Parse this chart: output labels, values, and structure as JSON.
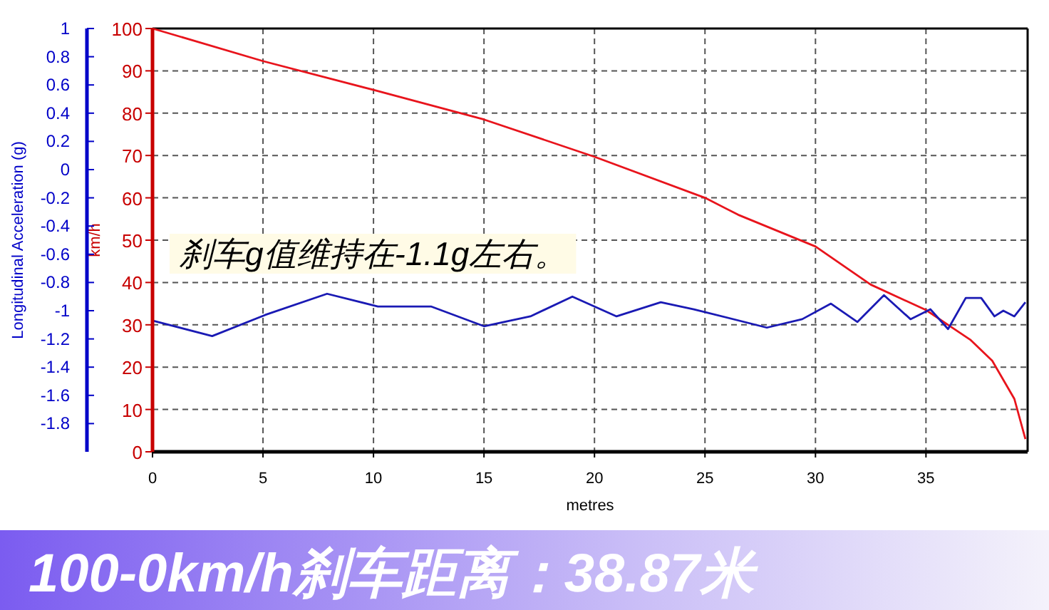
{
  "chart_data": {
    "type": "line",
    "title": "100-0km/h刹车距离：38.87米",
    "xlabel": "metres",
    "ylabel": "km/h",
    "y2label": "Longitudinal Acceleration (g)",
    "xlim": [
      0,
      39.6
    ],
    "xticks": [
      0,
      5,
      10,
      15,
      20,
      25,
      30,
      35
    ],
    "ylim": [
      0,
      100
    ],
    "yticks": [
      0,
      10,
      20,
      30,
      40,
      50,
      60,
      70,
      80,
      90,
      100
    ],
    "y2lim": [
      -2,
      1
    ],
    "y2ticks": [
      -1.8,
      -1.6,
      -1.4,
      -1.2,
      -1,
      -0.8,
      -0.6,
      -0.4,
      -0.2,
      0,
      0.2,
      0.4,
      0.6,
      0.8,
      1
    ],
    "grid": true,
    "annotations": [
      "刹车g值维持在-1.1g左右。"
    ],
    "series": [
      {
        "color": "#e8141c",
        "x": [
          0,
          5,
          10,
          15,
          20,
          25,
          26.5,
          30,
          32.5,
          35,
          36,
          37,
          38,
          39,
          39.5
        ],
        "values": [
          100,
          92.3,
          85.5,
          78.5,
          69.7,
          60,
          56,
          48.5,
          39.5,
          33.5,
          30,
          26.5,
          21.5,
          12.5,
          3
        ]
      },
      {
        "color": "#1a1ab4",
        "axis": "y2",
        "x": [
          0,
          2.7,
          5.1,
          7.9,
          10.2,
          12.6,
          15,
          17.1,
          19,
          21,
          23,
          24.5,
          27.8,
          29.4,
          30.7,
          31.9,
          33.1,
          34.3,
          35.2,
          36,
          36.8,
          37.5,
          38.1,
          38.5,
          39,
          39.5
        ],
        "values": [
          -1.07,
          -1.18,
          -1.03,
          -0.88,
          -0.97,
          -0.97,
          -1.11,
          -1.04,
          -0.9,
          -1.04,
          -0.94,
          -0.99,
          -1.12,
          -1.06,
          -0.95,
          -1.08,
          -0.89,
          -1.06,
          -0.99,
          -1.13,
          -0.91,
          -0.91,
          -1.04,
          -1.0,
          -1.04,
          -0.94
        ]
      }
    ]
  }
}
